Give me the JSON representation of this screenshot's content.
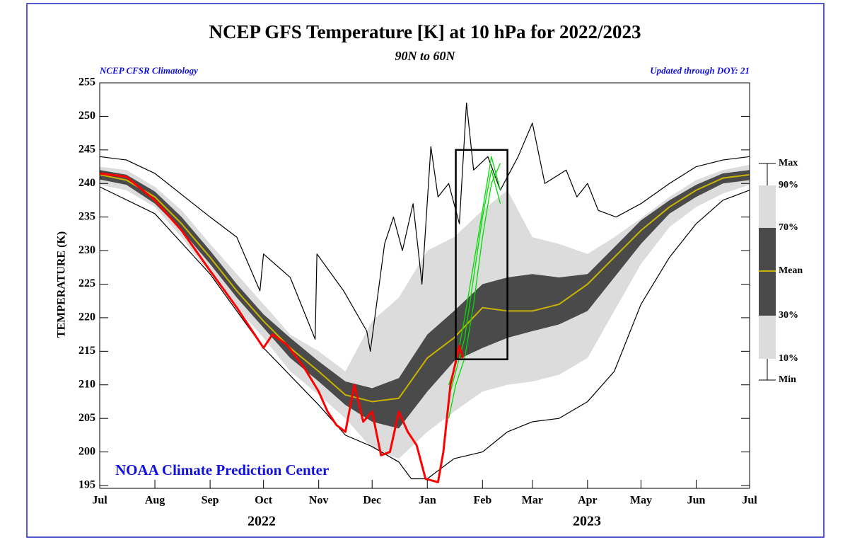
{
  "chart_data": {
    "type": "line",
    "title": "NCEP GFS Temperature [K] at 10 hPa for 2022/2023",
    "subtitle": "90N to 60N",
    "annotations": [
      "NCEP CFSR Climatology",
      "Updated through DOY:  21",
      "NOAA Climate Prediction Center",
      "2022",
      "2023"
    ],
    "ylabel": "TEMPERATURE (K)",
    "ylim": [
      195,
      255
    ],
    "yticks": [
      195,
      200,
      205,
      210,
      215,
      220,
      225,
      230,
      235,
      240,
      245,
      250,
      255
    ],
    "xlim": [
      0,
      365
    ],
    "xticks": [
      {
        "value": 0,
        "label": "Jul"
      },
      {
        "value": 31,
        "label": "Aug"
      },
      {
        "value": 62,
        "label": "Sep"
      },
      {
        "value": 92,
        "label": "Oct"
      },
      {
        "value": 123,
        "label": "Nov"
      },
      {
        "value": 153,
        "label": "Dec"
      },
      {
        "value": 184,
        "label": "Jan"
      },
      {
        "value": 215,
        "label": "Feb"
      },
      {
        "value": 243,
        "label": "Mar"
      },
      {
        "value": 274,
        "label": "Apr"
      },
      {
        "value": 304,
        "label": "May"
      },
      {
        "value": 335,
        "label": "Jun"
      },
      {
        "value": 365,
        "label": "Jul"
      }
    ],
    "series": [
      {
        "name": "Max",
        "color": "#000000",
        "x": [
          0,
          15,
          31,
          62,
          77,
          90,
          92,
          107,
          121,
          122,
          137,
          150,
          152,
          160,
          165,
          170,
          176,
          181,
          186,
          190,
          196,
          202,
          206,
          210,
          218,
          225,
          235,
          243,
          250,
          262,
          268,
          274,
          280,
          290,
          304,
          320,
          335,
          350,
          365
        ],
        "values": [
          244,
          243.5,
          241.5,
          235,
          232,
          224,
          229.5,
          226,
          216.8,
          229.5,
          224,
          218,
          215,
          231,
          235,
          230,
          237,
          225,
          245.5,
          238,
          240,
          234,
          252,
          242,
          244,
          239,
          244,
          249,
          240,
          242,
          238,
          240,
          236,
          235,
          237,
          240,
          242.5,
          243.5,
          244
        ]
      },
      {
        "name": "90%",
        "color": "#dcdcdc",
        "x": [
          0,
          15,
          31,
          46,
          62,
          77,
          92,
          107,
          123,
          138,
          153,
          168,
          184,
          199,
          215,
          229,
          243,
          258,
          274,
          289,
          304,
          320,
          335,
          350,
          365
        ],
        "values": [
          242.5,
          242,
          239.5,
          236,
          231,
          226.5,
          222,
          217.5,
          215,
          212,
          219.5,
          223,
          230,
          232,
          236,
          239,
          232,
          231,
          229.5,
          232,
          234.8,
          238,
          240.5,
          242,
          242.8
        ]
      },
      {
        "name": "70%",
        "color": "#4a4a4a",
        "x": [
          0,
          15,
          31,
          46,
          62,
          77,
          92,
          107,
          123,
          138,
          153,
          168,
          184,
          199,
          215,
          229,
          243,
          258,
          274,
          289,
          304,
          320,
          335,
          350,
          365
        ],
        "values": [
          242,
          241.3,
          238.8,
          235,
          230,
          225,
          220.5,
          217,
          213.5,
          210.5,
          209.5,
          211,
          217.5,
          221,
          225,
          226,
          226.5,
          226,
          226.5,
          230.5,
          234.5,
          237.5,
          239.8,
          241.5,
          242
        ]
      },
      {
        "name": "Mean",
        "color": "#c8b400",
        "x": [
          0,
          15,
          31,
          46,
          62,
          77,
          92,
          107,
          123,
          138,
          153,
          168,
          184,
          199,
          215,
          229,
          243,
          258,
          274,
          289,
          304,
          320,
          335,
          350,
          365
        ],
        "values": [
          241.3,
          240.5,
          238,
          234,
          229,
          224,
          219.5,
          215.5,
          212,
          208.5,
          207.5,
          208,
          214,
          217,
          221.5,
          221,
          221,
          222,
          225,
          229,
          233,
          236.5,
          239,
          240.8,
          241.3
        ]
      },
      {
        "name": "30%",
        "color": "#4a4a4a",
        "x": [
          0,
          15,
          31,
          46,
          62,
          77,
          92,
          107,
          123,
          138,
          153,
          168,
          184,
          199,
          215,
          229,
          243,
          258,
          274,
          289,
          304,
          320,
          335,
          350,
          365
        ],
        "values": [
          240.6,
          239.8,
          237,
          233,
          228,
          223,
          218.5,
          214,
          210.5,
          207,
          204.5,
          203.5,
          209,
          213.5,
          215.5,
          217,
          218,
          219,
          221,
          226,
          231,
          235.5,
          238,
          240,
          240.5
        ]
      },
      {
        "name": "10%",
        "color": "#dcdcdc",
        "x": [
          0,
          15,
          31,
          46,
          62,
          77,
          92,
          107,
          123,
          138,
          153,
          168,
          184,
          199,
          215,
          229,
          243,
          258,
          274,
          289,
          304,
          320,
          335,
          350,
          365
        ],
        "values": [
          239.8,
          239,
          236.5,
          232,
          226.5,
          221.5,
          217,
          212,
          208.5,
          205,
          200.5,
          199,
          203,
          206,
          209,
          210,
          210.5,
          211.5,
          214,
          221,
          228,
          233.5,
          236.5,
          238.5,
          239.8
        ]
      },
      {
        "name": "Min",
        "color": "#000000",
        "x": [
          0,
          31,
          62,
          92,
          123,
          138,
          153,
          168,
          175,
          184,
          199,
          215,
          229,
          243,
          258,
          274,
          289,
          304,
          320,
          335,
          350,
          365
        ],
        "values": [
          239.5,
          235.5,
          226.5,
          215.5,
          207,
          202.5,
          200.8,
          198.5,
          196,
          196,
          199,
          200,
          203,
          204.5,
          205,
          207.5,
          212,
          222,
          229,
          234,
          237.5,
          239
        ]
      },
      {
        "color": "#ff0000",
        "x": [
          0,
          15,
          31,
          46,
          62,
          77,
          92,
          97,
          105,
          115,
          123,
          128,
          133,
          138,
          143,
          148,
          153,
          158,
          163,
          168,
          173,
          178,
          183,
          190,
          193,
          197,
          202,
          204
        ],
        "values": [
          241.5,
          241,
          237.5,
          233,
          227,
          221.5,
          215.5,
          217.5,
          216,
          212.5,
          209,
          206,
          204,
          203,
          210,
          204.5,
          206,
          199.5,
          200,
          206,
          203,
          201,
          196,
          195.5,
          200,
          210,
          215.8,
          214
        ]
      },
      {
        "color": "#00dd00",
        "x": [
          196,
          200,
          205,
          210,
          215,
          220,
          225
        ],
        "values": [
          205,
          210,
          214,
          222,
          232,
          240,
          243
        ]
      },
      {
        "color": "#00dd00",
        "x": [
          196,
          200,
          205,
          210,
          215,
          220,
          225
        ],
        "values": [
          208,
          212,
          217,
          226,
          235,
          242,
          237
        ]
      },
      {
        "color": "#00dd00",
        "x": [
          196,
          200,
          205,
          210,
          215,
          220,
          225
        ],
        "values": [
          210,
          213,
          220,
          228,
          236,
          244,
          239
        ]
      }
    ],
    "highlight_box": {
      "x": [
        200,
        229
      ],
      "y": [
        213.8,
        245
      ]
    }
  }
}
